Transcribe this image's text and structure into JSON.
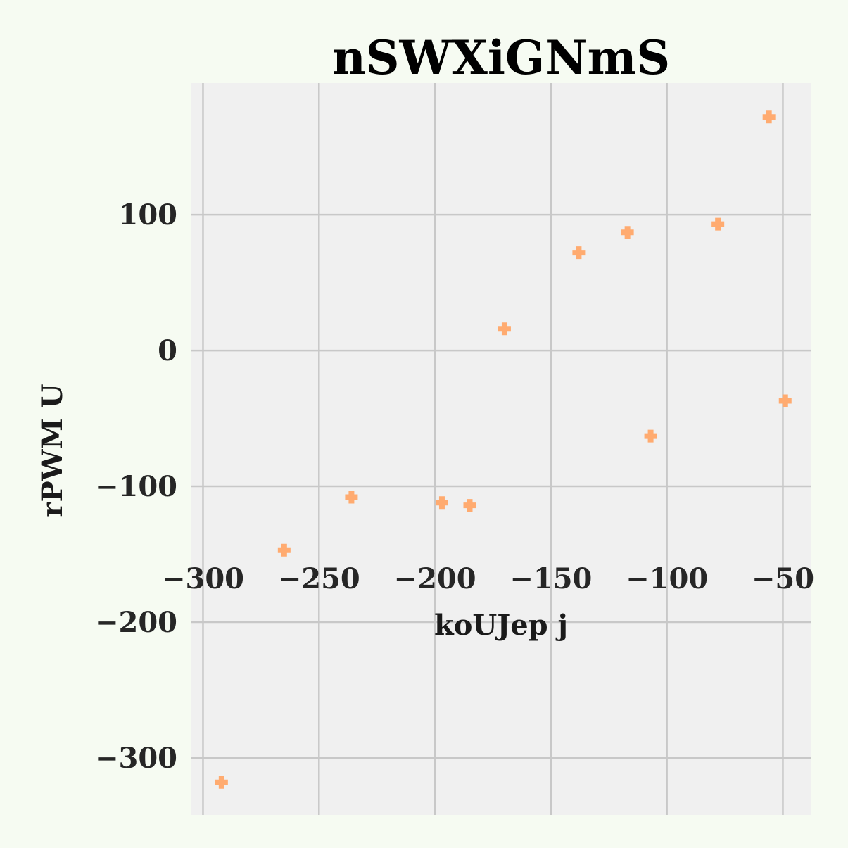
{
  "chart_data": {
    "type": "scatter",
    "title": "nSWXiGNmS",
    "xlabel": "koUJep  j",
    "ylabel": "rPWM U",
    "xlim": [
      -305,
      -38
    ],
    "ylim": [
      -342,
      197
    ],
    "xticks": [
      -300,
      -250,
      -200,
      -150,
      -100,
      -50
    ],
    "yticks": [
      100,
      0,
      -100,
      -200,
      -300
    ],
    "xtick_labels": [
      "−300",
      "−250",
      "−200",
      "−150",
      "−100",
      "−50"
    ],
    "ytick_labels": [
      "100",
      "0",
      "−100",
      "−200",
      "−300"
    ],
    "grid": true,
    "marker": "plus-filled",
    "series": [
      {
        "color": "#ffab70",
        "points": [
          {
            "x": -292,
            "y": -318
          },
          {
            "x": -265,
            "y": -147
          },
          {
            "x": -236,
            "y": -108
          },
          {
            "x": -197,
            "y": -112
          },
          {
            "x": -185,
            "y": -114
          },
          {
            "x": -170,
            "y": 16
          },
          {
            "x": -138,
            "y": 72
          },
          {
            "x": -117,
            "y": 87
          },
          {
            "x": -107,
            "y": -63
          },
          {
            "x": -78,
            "y": 93
          },
          {
            "x": -56,
            "y": 172
          },
          {
            "x": -49,
            "y": -37
          }
        ]
      }
    ]
  },
  "colors": {
    "page_background": "#f6fbf2",
    "plot_background": "#f0f0f0",
    "grid": "#c8c8c8",
    "marker": "#ffab70"
  }
}
